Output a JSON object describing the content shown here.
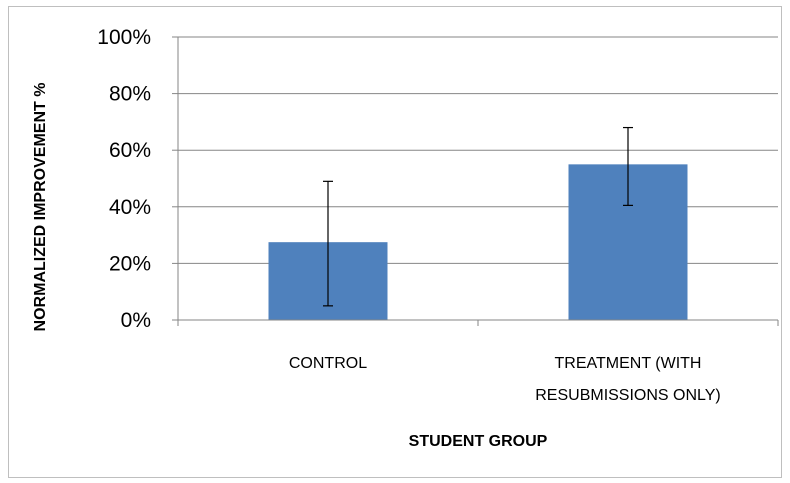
{
  "chart_data": {
    "type": "bar",
    "xlabel": "STUDENT GROUP",
    "ylabel": "NORMALIZED IMPROVEMENT %",
    "ylim": [
      0,
      100
    ],
    "yticks": [
      "0%",
      "20%",
      "40%",
      "60%",
      "80%",
      "100%"
    ],
    "ytick_values": [
      0,
      20,
      40,
      60,
      80,
      100
    ],
    "grid": true,
    "legend": "none",
    "categories": [
      {
        "lines": [
          "CONTROL"
        ]
      },
      {
        "lines": [
          "TREATMENT (WITH",
          "RESUBMISSIONS ONLY)"
        ]
      }
    ],
    "values": [
      27.5,
      55
    ],
    "error_low": [
      5,
      40.5
    ],
    "error_high": [
      49,
      68
    ],
    "bar_color": "#4f81bd"
  }
}
